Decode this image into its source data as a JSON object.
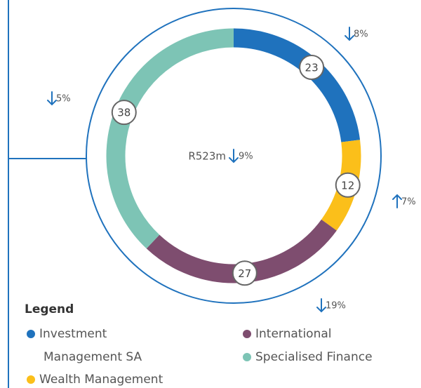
{
  "chart_data": {
    "type": "donut",
    "title": "Legend",
    "categories": [
      "Investment Management SA",
      "Wealth Management",
      "International",
      "Specialised Finance"
    ],
    "values": [
      23,
      12,
      27,
      38
    ],
    "colors": [
      "#1f72bd",
      "#fbbf1a",
      "#7e4d6f",
      "#7dc4b5"
    ],
    "changes": [
      8,
      7,
      19,
      5
    ],
    "change_labels": [
      "8%",
      "7%",
      "19%",
      "5%"
    ],
    "change_directions": [
      "down",
      "up",
      "down",
      "down"
    ],
    "total_label": "R523m",
    "total_change": 9,
    "total_change_label": "9%",
    "total_change_direction": "down"
  }
}
